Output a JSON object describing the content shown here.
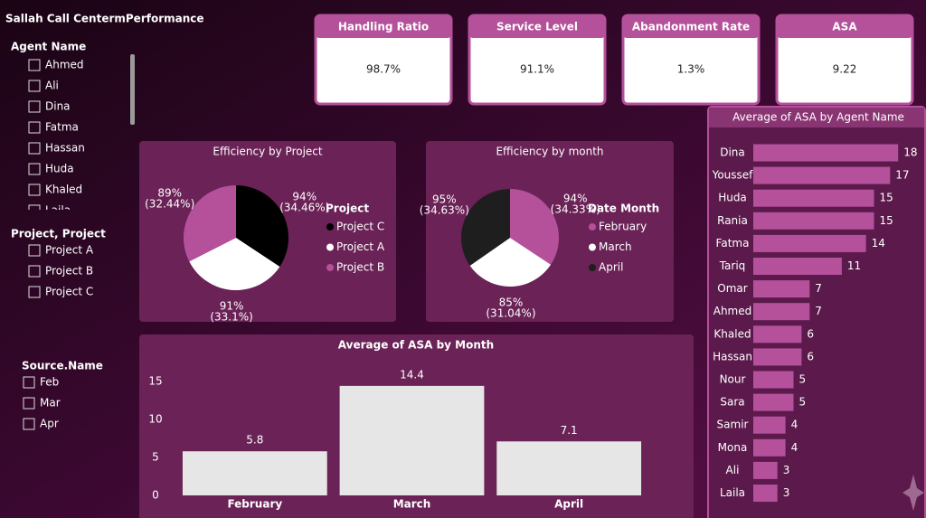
{
  "title": "Sallah Call CentermPerformance",
  "slicers": [
    {
      "title": "Agent Name",
      "items": [
        "Ahmed",
        "Ali",
        "Dina",
        "Fatma",
        "Hassan",
        "Huda",
        "Khaled",
        "Laila"
      ]
    },
    {
      "title": "Project, Project",
      "items": [
        "Project A",
        "Project B",
        "Project C"
      ]
    },
    {
      "title": "Source.Name",
      "items": [
        "Feb",
        "Mar",
        "Apr"
      ]
    }
  ],
  "kpis": [
    {
      "label": "Handling Ratio",
      "value": "98.7%"
    },
    {
      "label": "Service Level",
      "value": "91.1%"
    },
    {
      "label": "Abandonment Rate",
      "value": "1.3%"
    },
    {
      "label": "ASA",
      "value": "9.22"
    }
  ],
  "chart_data": [
    {
      "type": "pie",
      "title": "Efficiency by Project",
      "legend_title": "Project",
      "categories": [
        "Project C",
        "Project A",
        "Project B"
      ],
      "values": [
        94,
        91,
        89
      ],
      "value_labels": [
        "94%",
        "91%",
        "89%"
      ],
      "share_labels": [
        "(34.46%)",
        "(33.1%)",
        "(32.44%)"
      ],
      "colors": [
        "#000000",
        "#ffffff",
        "#b5509b"
      ]
    },
    {
      "type": "pie",
      "title": "Efficiency by month",
      "legend_title": "Date Month",
      "categories": [
        "February",
        "March",
        "April"
      ],
      "values": [
        94,
        85,
        95
      ],
      "value_labels": [
        "94%",
        "85%",
        "95%"
      ],
      "share_labels": [
        "(34.33%)",
        "(31.04%)",
        "(34.63%)"
      ],
      "colors": [
        "#b5509b",
        "#ffffff",
        "#1e1e1e"
      ]
    },
    {
      "type": "bar",
      "title": "Average of ASA by Month",
      "categories": [
        "February",
        "March",
        "April"
      ],
      "values": [
        5.8,
        14.4,
        7.1
      ],
      "color": "#e6e6e6",
      "ylim": [
        0,
        17
      ],
      "yticks": [
        0,
        5,
        10,
        15
      ]
    },
    {
      "type": "barh",
      "title": "Average of ASA by Agent Name",
      "categories": [
        "Dina",
        "Youssef",
        "Huda",
        "Rania",
        "Fatma",
        "Tariq",
        "Omar",
        "Ahmed",
        "Khaled",
        "Hassan",
        "Nour",
        "Sara",
        "Samir",
        "Mona",
        "Ali",
        "Laila"
      ],
      "values": [
        18,
        17,
        15,
        15,
        14,
        11,
        7,
        7,
        6,
        6,
        5,
        5,
        4,
        4,
        3,
        3
      ],
      "color": "#b5509b",
      "xlim": [
        0,
        20
      ]
    }
  ]
}
